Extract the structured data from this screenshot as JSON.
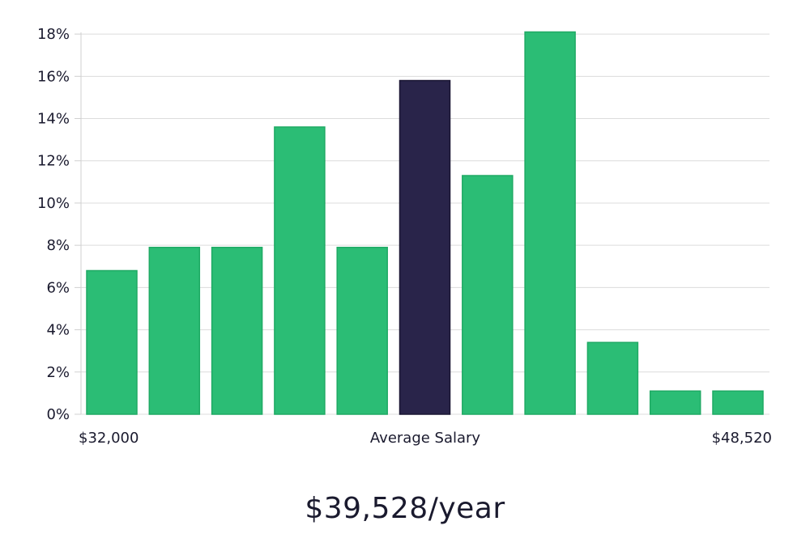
{
  "chart_data": {
    "type": "bar",
    "categories": [
      "1",
      "2",
      "3",
      "4",
      "5",
      "6",
      "7",
      "8",
      "9",
      "10",
      "11"
    ],
    "values": [
      6.8,
      7.9,
      7.9,
      13.6,
      7.9,
      15.8,
      11.3,
      18.1,
      3.4,
      1.1,
      1.1
    ],
    "highlight_index": 5,
    "ylim": [
      0,
      19
    ],
    "yticks": [
      0,
      2,
      4,
      6,
      8,
      10,
      12,
      14,
      16,
      18
    ],
    "ytick_format": "{v}%",
    "x_labels": {
      "left": "$32,000",
      "center": "Average Salary",
      "right": "$48,520"
    },
    "grid": true,
    "colors": {
      "bar": "#2bbd75",
      "bar_stroke": "#1faa64",
      "highlight": "#29244a",
      "highlight_stroke": "#1a1633"
    }
  },
  "salary": {
    "value": "$39,528/year"
  }
}
